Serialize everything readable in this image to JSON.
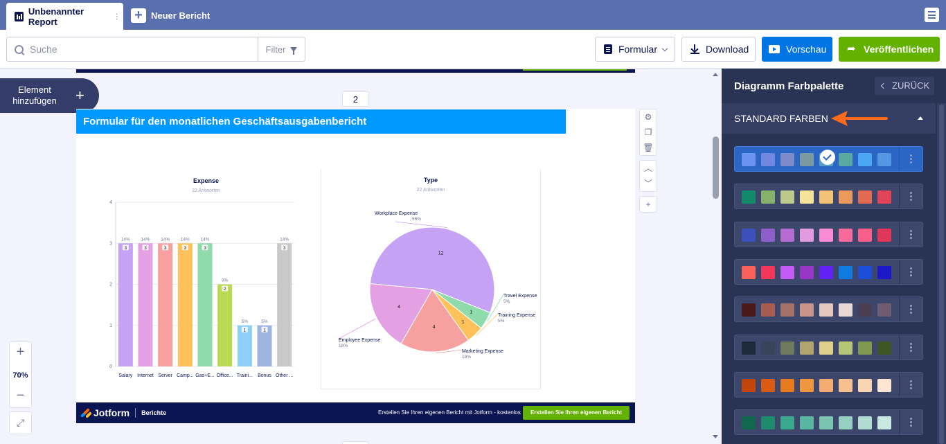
{
  "tabs": {
    "active_title": "Unbenannter Report",
    "new_label": "Neuer Bericht"
  },
  "toolbar": {
    "search_placeholder": "Suche",
    "filter_label": "Filter",
    "form_label": "Formular",
    "download_label": "Download",
    "preview_label": "Vorschau",
    "publish_label": "Veröffentlichen"
  },
  "canvas": {
    "add_element_label": "Element hinzufügen",
    "page_number": "2",
    "zoom_level": "70%"
  },
  "page": {
    "header_title": "Formular für den monatlichen Geschäftsausgabenbericht",
    "footer": {
      "brand": "Jotform",
      "sub": "Berichte",
      "text": "Erstellen Sie Ihren eigenen Bericht mit Jotform - kostenlos",
      "cta": "Erstellen Sie Ihren eigenen Bericht"
    }
  },
  "panel": {
    "title": "Diagramm Farbpalette",
    "back_label": "ZURÜCK",
    "section_label": "STANDARD FARBEN",
    "palettes": [
      {
        "colors": [
          "#6b94f0",
          "#7088e0",
          "#7d8bc8",
          "#7b9aa0",
          "#5a9ec8",
          "#59a9a0",
          "#4aa6f0",
          "#5597e0"
        ],
        "selected": true
      },
      {
        "colors": [
          "#108a6a",
          "#86b16a",
          "#bbc98a",
          "#f6e39a",
          "#f2c277",
          "#ec9a5b",
          "#e26a52",
          "#e04458"
        ],
        "selected": false
      },
      {
        "colors": [
          "#3c4fba",
          "#8d5ec9",
          "#b46bd2",
          "#e29be0",
          "#f98ad3",
          "#f76b9c",
          "#fa5f8a",
          "#e0365a"
        ],
        "selected": false
      },
      {
        "colors": [
          "#f8625b",
          "#f5365c",
          "#c25cf5",
          "#9836c6",
          "#6322f5",
          "#0f7ae0",
          "#1b4fd9",
          "#1c18c7"
        ],
        "selected": false
      },
      {
        "colors": [
          "#4a1a1a",
          "#a65c4e",
          "#a67268",
          "#c9958a",
          "#e3c8c0",
          "#e8d8d6",
          "#4a3e53",
          "#6e5d70"
        ],
        "selected": false
      },
      {
        "colors": [
          "#1e2a3e",
          "#37445a",
          "#707a5e",
          "#b0a56e",
          "#ded08a",
          "#b7c577",
          "#7f9a4e",
          "#3e5624"
        ],
        "selected": false
      },
      {
        "colors": [
          "#c2450a",
          "#d95a12",
          "#e67a1d",
          "#f0963f",
          "#f5ac70",
          "#f7c08e",
          "#f9d4b2",
          "#fce5d1"
        ],
        "selected": false
      },
      {
        "colors": [
          "#12674f",
          "#1e8a6e",
          "#3aa88e",
          "#5ab6a0",
          "#7bc4b2",
          "#96d0c2",
          "#b0dcd1",
          "#c9e8e0"
        ],
        "selected": false
      }
    ]
  },
  "chart_data": [
    {
      "type": "bar",
      "title": "Expense",
      "subtitle": "22 Antworten",
      "categories": [
        "Salary",
        "Internet",
        "Server",
        "Camp...",
        "Gas+E...",
        "Office...",
        "Traini...",
        "Bonus",
        "Other ..."
      ],
      "values": [
        3,
        3,
        3,
        3,
        3,
        2,
        1,
        1,
        3
      ],
      "percent_labels": [
        "14%",
        "14%",
        "14%",
        "14%",
        "14%",
        "9%",
        "5%",
        "5%",
        "14%"
      ],
      "colors": [
        "#c6a2f5",
        "#e3a0e3",
        "#f7a0a0",
        "#ffc15a",
        "#8fdbac",
        "#bada55",
        "#8ecff8",
        "#a0b4e0",
        "#c9c9c9"
      ],
      "ylim": [
        0,
        4
      ],
      "yticks": [
        0,
        1,
        2,
        3,
        4
      ],
      "grid": true
    },
    {
      "type": "pie",
      "title": "Type",
      "subtitle": "22 Antworten",
      "slices": [
        {
          "label": "Workplace Expense",
          "value": 12,
          "percent": "55%",
          "color": "#c6a2f5"
        },
        {
          "label": "Travel Expense",
          "value": 1,
          "percent": "5%",
          "color": "#8fdbac"
        },
        {
          "label": "Training Expense",
          "value": 1,
          "percent": "5%",
          "color": "#ffc15a"
        },
        {
          "label": "Marketing Expense",
          "value": 4,
          "percent": "18%",
          "color": "#f7a0a0"
        },
        {
          "label": "Employee Expense",
          "value": 4,
          "percent": "18%",
          "color": "#e3a0e3"
        }
      ]
    }
  ]
}
